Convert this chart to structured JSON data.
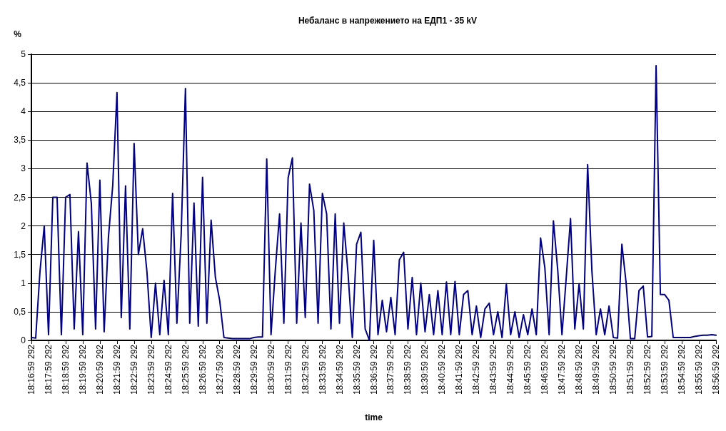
{
  "chart_data": {
    "type": "line",
    "title": "Небаланс в напрежението на ЕДП1 - 35 kV",
    "xlabel": "time",
    "ylabel": "%",
    "categories": [
      "18:16:59 292",
      null,
      null,
      null,
      "18:17:59 292",
      null,
      null,
      null,
      "18:18:59 292",
      null,
      null,
      null,
      "18:19:59 292",
      null,
      null,
      null,
      "18:20:59 292",
      null,
      null,
      null,
      "18:21:59 292",
      null,
      null,
      null,
      "18:22:59 292",
      null,
      null,
      null,
      "18:23:59 292",
      null,
      null,
      null,
      "18:24:59 292",
      null,
      null,
      null,
      "18:25:59 292",
      null,
      null,
      null,
      "18:26:59 292",
      null,
      null,
      null,
      "18:27:59 292",
      null,
      null,
      null,
      "18:28:59 292",
      null,
      null,
      null,
      "18:29:59 292",
      null,
      null,
      null,
      "18:30:59 292",
      null,
      null,
      null,
      "18:31:59 292",
      null,
      null,
      null,
      "18:32:59 292",
      null,
      null,
      null,
      "18:33:59 292",
      null,
      null,
      null,
      "18:34:59 292",
      null,
      null,
      null,
      "18:35:59 292",
      null,
      null,
      null,
      "18:36:59 292",
      null,
      null,
      null,
      "18:37:59 292",
      null,
      null,
      null,
      "18:38:59 292",
      null,
      null,
      null,
      "18:39:59 292",
      null,
      null,
      null,
      "18:40:59 292",
      null,
      null,
      null,
      "18:41:59 292",
      null,
      null,
      null,
      "18:42:59 292",
      null,
      null,
      null,
      "18:43:59 292",
      null,
      null,
      null,
      "18:44:59 292",
      null,
      null,
      null,
      "18:45:59 292",
      null,
      null,
      null,
      "18:46:59 292",
      null,
      null,
      null,
      "18:47:59 292",
      null,
      null,
      null,
      "18:48:59 292",
      null,
      null,
      null,
      "18:49:59 292",
      null,
      null,
      null,
      "18:50:59 292",
      null,
      null,
      null,
      "18:51:59 292",
      null,
      null,
      null,
      "18:52:59 292",
      null,
      null,
      null,
      "18:53:59 292",
      null,
      null,
      null,
      "18:54:59 292",
      null,
      null,
      null,
      "18:55:59 292",
      null,
      null,
      null,
      "18:56:59 292"
    ],
    "series": [
      {
        "color": "#000080",
        "values": [
          0.05,
          0.04,
          1.2,
          2.0,
          0.1,
          2.5,
          2.5,
          0.1,
          2.5,
          2.55,
          0.2,
          1.9,
          0.1,
          3.1,
          2.4,
          0.2,
          2.8,
          0.15,
          1.8,
          2.7,
          4.33,
          0.4,
          2.7,
          0.2,
          3.44,
          1.5,
          1.95,
          1.2,
          0.05,
          1.0,
          0.1,
          1.05,
          0.1,
          2.57,
          0.3,
          1.85,
          4.4,
          0.3,
          2.4,
          0.25,
          2.85,
          0.3,
          2.1,
          1.1,
          0.7,
          0.05,
          0.04,
          0.03,
          0.03,
          0.03,
          0.03,
          0.03,
          0.05,
          0.06,
          0.06,
          3.17,
          0.1,
          1.22,
          2.21,
          0.3,
          2.84,
          3.19,
          0.3,
          2.05,
          0.4,
          2.73,
          2.27,
          0.3,
          2.57,
          2.21,
          0.2,
          2.21,
          0.3,
          2.05,
          1.17,
          0.05,
          1.68,
          1.89,
          0.2,
          0.0,
          1.75,
          0.1,
          0.7,
          0.15,
          0.75,
          0.1,
          1.41,
          1.54,
          0.2,
          1.1,
          0.1,
          1.0,
          0.15,
          0.8,
          0.1,
          0.87,
          0.1,
          1.02,
          0.1,
          1.03,
          0.1,
          0.8,
          0.87,
          0.1,
          0.6,
          0.05,
          0.55,
          0.65,
          0.1,
          0.5,
          0.05,
          0.99,
          0.1,
          0.5,
          0.05,
          0.45,
          0.1,
          0.55,
          0.1,
          1.79,
          1.27,
          0.1,
          2.09,
          1.24,
          0.1,
          1.1,
          2.13,
          0.2,
          0.99,
          0.2,
          3.07,
          1.21,
          0.1,
          0.55,
          0.1,
          0.6,
          0.05,
          0.04,
          1.68,
          1.0,
          0.03,
          0.03,
          0.87,
          0.95,
          0.06,
          0.07,
          4.8,
          0.8,
          0.8,
          0.7,
          0.05,
          0.05,
          0.05,
          0.05,
          0.05,
          0.07,
          0.08,
          0.09,
          0.09,
          0.1,
          0.09
        ]
      }
    ],
    "ylim": [
      0,
      5
    ],
    "yticks": [
      0,
      {
        "value": 0.5,
        "label": "0,5"
      },
      1,
      {
        "value": 1.5,
        "label": "1,5"
      },
      2,
      {
        "value": 2.5,
        "label": "2,5"
      },
      3,
      {
        "value": 3.5,
        "label": "3,5"
      },
      4,
      {
        "value": 4.5,
        "label": "4,5"
      },
      5
    ],
    "grid": "y",
    "marker": "none",
    "line_style": "solid"
  }
}
